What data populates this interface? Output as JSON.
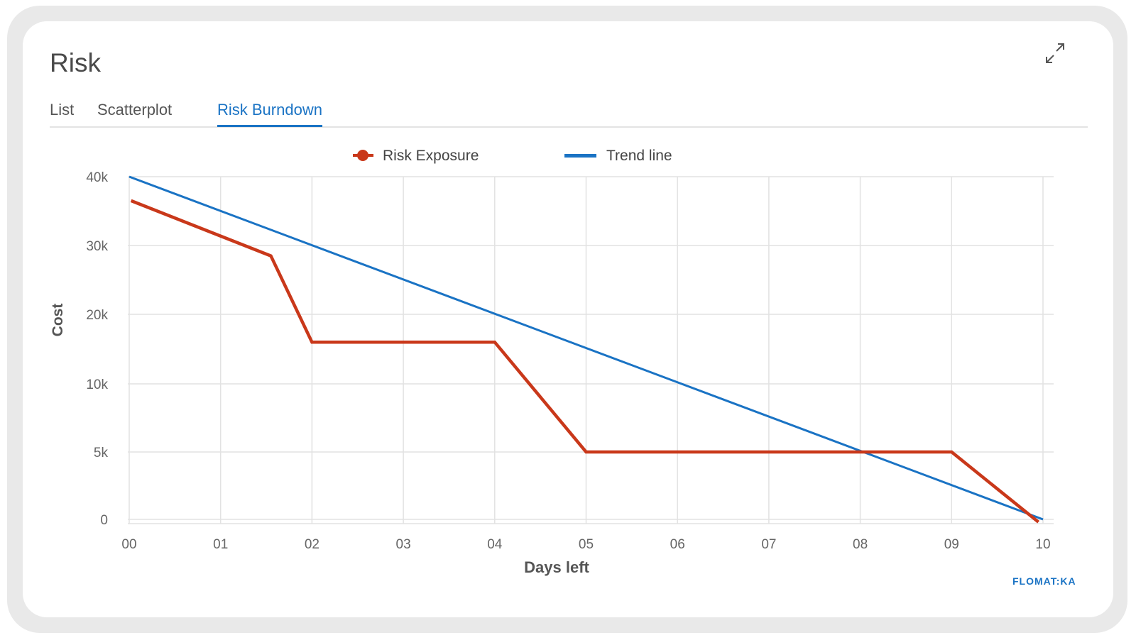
{
  "window": {
    "title": "Risk"
  },
  "tabs": [
    {
      "label": "List",
      "active": false
    },
    {
      "label": "Scatterplot",
      "active": false
    },
    {
      "label": "Risk Burndown",
      "active": true
    }
  ],
  "toolbar": {
    "expand_icon": "expand-icon"
  },
  "brand": {
    "text": "FLOMAT:KA"
  },
  "colors": {
    "risk_exposure": "#c9381a",
    "trend_line": "#1a73c4",
    "accent": "#1a73c4"
  },
  "chart_data": {
    "type": "line",
    "x_tick_labels": [
      "00",
      "01",
      "02",
      "03",
      "04",
      "05",
      "06",
      "07",
      "08",
      "09",
      "10"
    ],
    "y_tick_labels": [
      "0",
      "5k",
      "10k",
      "20k",
      "30k",
      "40k"
    ],
    "y_tick_values": [
      0,
      5000,
      10000,
      20000,
      30000,
      40000
    ],
    "xlabel": "Days left",
    "ylabel": "Cost",
    "xlim": [
      0,
      10
    ],
    "grid": true,
    "legend_position": "top-center",
    "series": [
      {
        "name": "Risk Exposure",
        "color": "#c9381a",
        "marker": "circle",
        "points": [
          {
            "x": 0.02,
            "y": 36500
          },
          {
            "x": 1.55,
            "y": 28500
          },
          {
            "x": 2.0,
            "y": 16000
          },
          {
            "x": 4.0,
            "y": 16000
          },
          {
            "x": 5.0,
            "y": 5000
          },
          {
            "x": 9.0,
            "y": 5000
          },
          {
            "x": 9.95,
            "y": -200
          }
        ]
      },
      {
        "name": "Trend line",
        "color": "#1a73c4",
        "marker": "none",
        "points": [
          {
            "x": 0,
            "y": 40000
          },
          {
            "x": 10,
            "y": 0
          }
        ]
      }
    ]
  }
}
